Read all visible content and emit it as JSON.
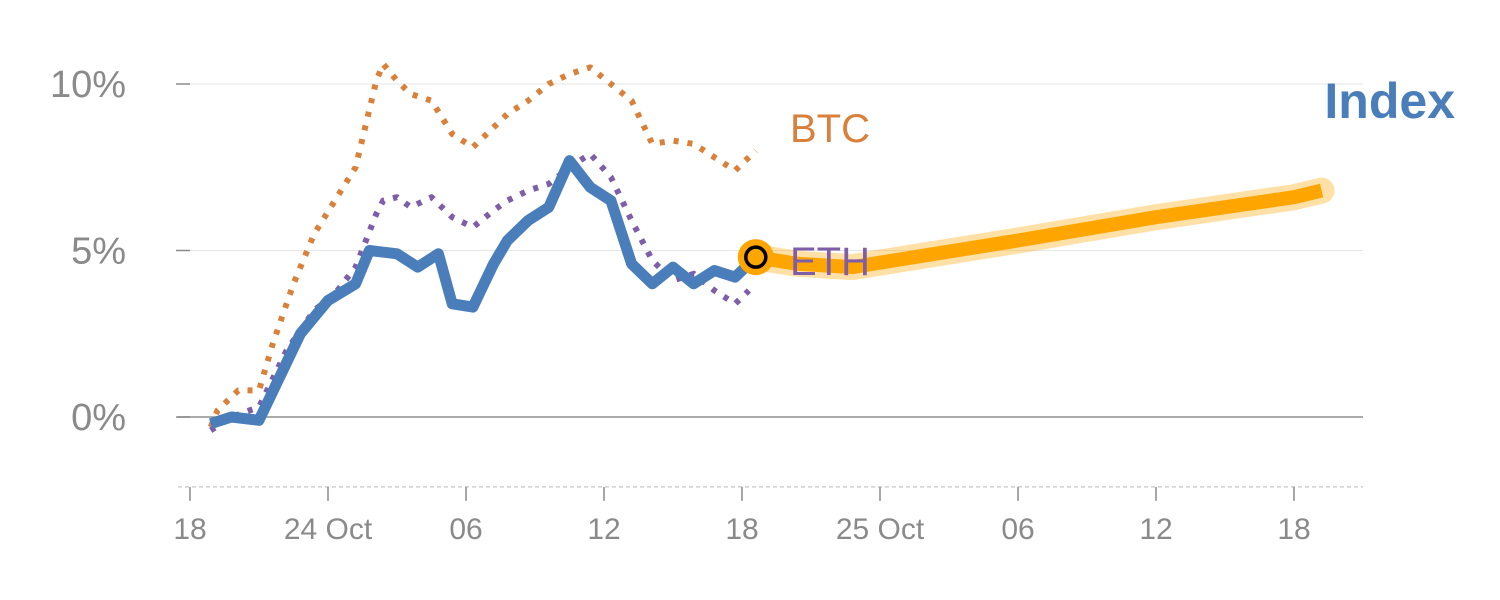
{
  "chart_data": {
    "type": "line",
    "title": "Index",
    "y_ticks": [
      "0%",
      "5%",
      "10%"
    ],
    "y_tick_values": [
      0,
      5,
      10
    ],
    "x_ticks": [
      "18",
      "24 Oct",
      "06",
      "12",
      "18",
      "25 Oct",
      "06",
      "12",
      "18"
    ],
    "x_tick_positions": [
      0,
      10,
      20,
      30,
      40,
      50,
      60,
      70,
      80
    ],
    "ylim": [
      -2.1,
      10.5
    ],
    "xlim": [
      0,
      85
    ],
    "grid": true,
    "colors": {
      "index": "#4a7ebb",
      "btc": "#d9803a",
      "eth": "#7e5ea8",
      "projection": "#ffa500",
      "axis": "#8a8a8a"
    },
    "series": [
      {
        "name": "BTC",
        "style": "dotted",
        "x": [
          1.5,
          2,
          3.5,
          5,
          6,
          7.5,
          9,
          10.5,
          12,
          13.5,
          14,
          15,
          16,
          17.5,
          19,
          20.5,
          22,
          23,
          24.5,
          26,
          27.5,
          29,
          30.5,
          32,
          33.5,
          35,
          36.5,
          38,
          39.5,
          41
        ],
        "y": [
          -0.3,
          0.2,
          0.8,
          0.8,
          2.2,
          4.0,
          5.5,
          6.5,
          7.5,
          10.1,
          10.6,
          10.1,
          9.7,
          9.5,
          8.5,
          8.1,
          8.7,
          9.1,
          9.5,
          10.0,
          10.3,
          10.5,
          10.0,
          9.5,
          8.2,
          8.3,
          8.2,
          7.8,
          7.4,
          8.0
        ]
      },
      {
        "name": "ETH",
        "style": "dotted",
        "x": [
          1.5,
          3,
          5,
          7,
          9,
          10.5,
          12,
          13.5,
          14,
          15,
          16,
          17.5,
          19,
          20.5,
          22,
          23,
          24.5,
          26,
          27.5,
          29,
          30.5,
          32,
          33.5,
          35,
          36.5,
          38,
          39.5,
          40.5
        ],
        "y": [
          -0.4,
          0.0,
          0.3,
          2.0,
          3.2,
          3.7,
          4.5,
          6.1,
          6.5,
          6.6,
          6.3,
          6.6,
          6.0,
          5.7,
          6.2,
          6.5,
          6.8,
          7.0,
          7.5,
          7.9,
          7.2,
          5.9,
          4.7,
          4.1,
          4.3,
          3.8,
          3.4,
          3.8
        ]
      },
      {
        "name": "Index",
        "style": "solid",
        "x": [
          1.5,
          3,
          5,
          8,
          10,
          12,
          13,
          15,
          16.5,
          18,
          19,
          20.5,
          22,
          23,
          24.5,
          26,
          27.5,
          29,
          30.5,
          32,
          33.5,
          35,
          36.5,
          38,
          39.5,
          41
        ],
        "y": [
          -0.2,
          0.0,
          -0.1,
          2.5,
          3.5,
          4.0,
          5.0,
          4.9,
          4.5,
          4.9,
          3.4,
          3.3,
          4.6,
          5.3,
          5.9,
          6.3,
          7.7,
          6.9,
          6.5,
          4.6,
          4.0,
          4.5,
          4.0,
          4.4,
          4.2,
          4.8
        ]
      },
      {
        "name": "Index",
        "style": "projection",
        "x": [
          41,
          44,
          48,
          60,
          70,
          80,
          82
        ],
        "y": [
          4.8,
          4.6,
          4.5,
          5.3,
          6.0,
          6.6,
          6.8
        ]
      }
    ],
    "annotations": [
      {
        "type": "marker",
        "x": 41,
        "y": 4.8
      }
    ],
    "labels": {
      "btc": "BTC",
      "eth": "ETH"
    }
  }
}
